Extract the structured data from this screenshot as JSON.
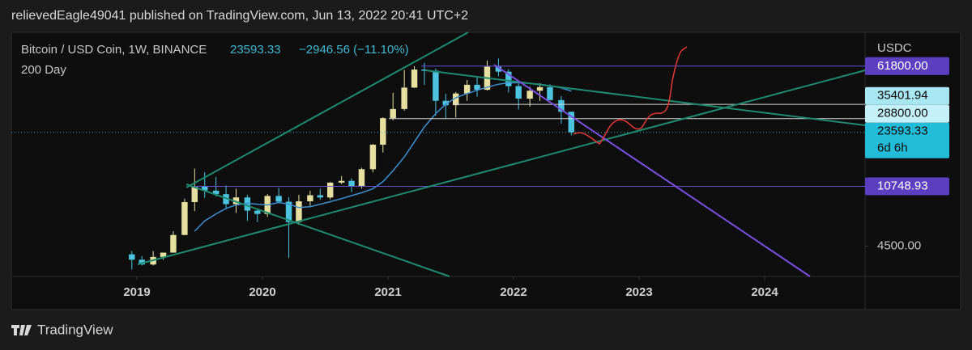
{
  "header": {
    "published": "relievedEagle49041 published on TradingView.com, Jun 13, 2022 20:41 UTC+2"
  },
  "footer": {
    "brand": "TradingView"
  },
  "chart_data": {
    "type": "candlestick",
    "title": "Bitcoin / USD Coin, 1W, BINANCE",
    "last": 23593.33,
    "change": "−2946.56 (−11.10%)",
    "countdown": "6d 6h",
    "y_axis_label": "USDC",
    "log_scale": true,
    "xlim": [
      2018.0,
      2024.8
    ],
    "xticks": [
      2019,
      2020,
      2021,
      2022,
      2023,
      2024
    ],
    "ylim": [
      2900,
      101000
    ],
    "yticks": [
      {
        "value": 4500,
        "label": "4500.00"
      }
    ],
    "up_color": "#e6dfa0",
    "down_color": "#4cc4e0",
    "x": [
      2018.96,
      2019.04,
      2019.13,
      2019.21,
      2019.29,
      2019.38,
      2019.46,
      2019.54,
      2019.63,
      2019.71,
      2019.79,
      2019.88,
      2019.96,
      2020.04,
      2020.13,
      2020.21,
      2020.29,
      2020.38,
      2020.46,
      2020.54,
      2020.63,
      2020.71,
      2020.79,
      2020.88,
      2020.96,
      2021.04,
      2021.13,
      2021.21,
      2021.29,
      2021.38,
      2021.46,
      2021.54,
      2021.63,
      2021.71,
      2021.79,
      2021.88,
      2021.96,
      2022.04,
      2022.13,
      2022.21,
      2022.29,
      2022.38,
      2022.46
    ],
    "open": [
      4000,
      3700,
      3450,
      3850,
      4100,
      5300,
      8550,
      10800,
      10100,
      9600,
      8300,
      9150,
      7550,
      7200,
      9350,
      8600,
      6400,
      8650,
      9450,
      9150,
      11350,
      11650,
      10800,
      13800,
      19700,
      29000,
      33100,
      45200,
      58800,
      57800,
      37300,
      35000,
      41500,
      47100,
      43800,
      61300,
      57000,
      46200,
      38500,
      43200,
      45500,
      37700,
      31800
    ],
    "high": [
      4200,
      3900,
      4200,
      4100,
      5600,
      9000,
      13900,
      13200,
      12300,
      10900,
      10400,
      9500,
      7750,
      9600,
      10500,
      9200,
      9500,
      10100,
      10400,
      11450,
      12500,
      12100,
      14100,
      19900,
      29300,
      41900,
      58400,
      61800,
      64900,
      59600,
      41300,
      42400,
      50500,
      52900,
      67000,
      69000,
      59100,
      48000,
      45800,
      48200,
      47400,
      40000,
      31900
    ],
    "low": [
      3200,
      3400,
      3400,
      3700,
      4100,
      5300,
      7500,
      9100,
      9300,
      7700,
      7300,
      6500,
      6400,
      6900,
      8450,
      3800,
      6150,
      8100,
      8850,
      8900,
      11100,
      9900,
      10400,
      13200,
      17600,
      28100,
      32300,
      45000,
      47000,
      30000,
      28800,
      29300,
      37300,
      39600,
      43300,
      53300,
      42000,
      32900,
      34300,
      37200,
      37700,
      26700,
      22600
    ],
    "close": [
      3700,
      3450,
      3850,
      4100,
      5300,
      8550,
      10800,
      10100,
      9600,
      8300,
      9150,
      7550,
      7200,
      9350,
      8600,
      6400,
      8650,
      9450,
      9150,
      11350,
      11650,
      10800,
      13800,
      19700,
      29000,
      33100,
      45200,
      58800,
      57800,
      37300,
      35000,
      41500,
      47100,
      43800,
      61300,
      57000,
      46200,
      38500,
      43200,
      45500,
      37700,
      31800,
      23593.33
    ],
    "indicator": {
      "name": "200 Day",
      "color": "#3d8fd1",
      "values": [
        null,
        null,
        null,
        null,
        null,
        null,
        5600,
        6500,
        7200,
        7800,
        8200,
        8400,
        8300,
        8200,
        8500,
        8300,
        7900,
        8000,
        8300,
        8600,
        9000,
        9400,
        9800,
        10400,
        11500,
        13500,
        16500,
        20500,
        25500,
        31000,
        35500,
        39000,
        41500,
        43500,
        45500,
        47500,
        48500,
        48500,
        48000,
        47500,
        46500,
        45000,
        43000
      ]
    },
    "price_markers": [
      {
        "value": 61800,
        "label": "61800.00",
        "color": "#5a3fc0"
      },
      {
        "value": 35401.94,
        "color": "#a8e6f2"
      },
      {
        "value": 28800,
        "label": "28800.00",
        "color": "#c4f1f7"
      },
      {
        "value": 10748.93,
        "color": "#5a3fc0"
      }
    ],
    "last_color": "#22bcd8"
  }
}
